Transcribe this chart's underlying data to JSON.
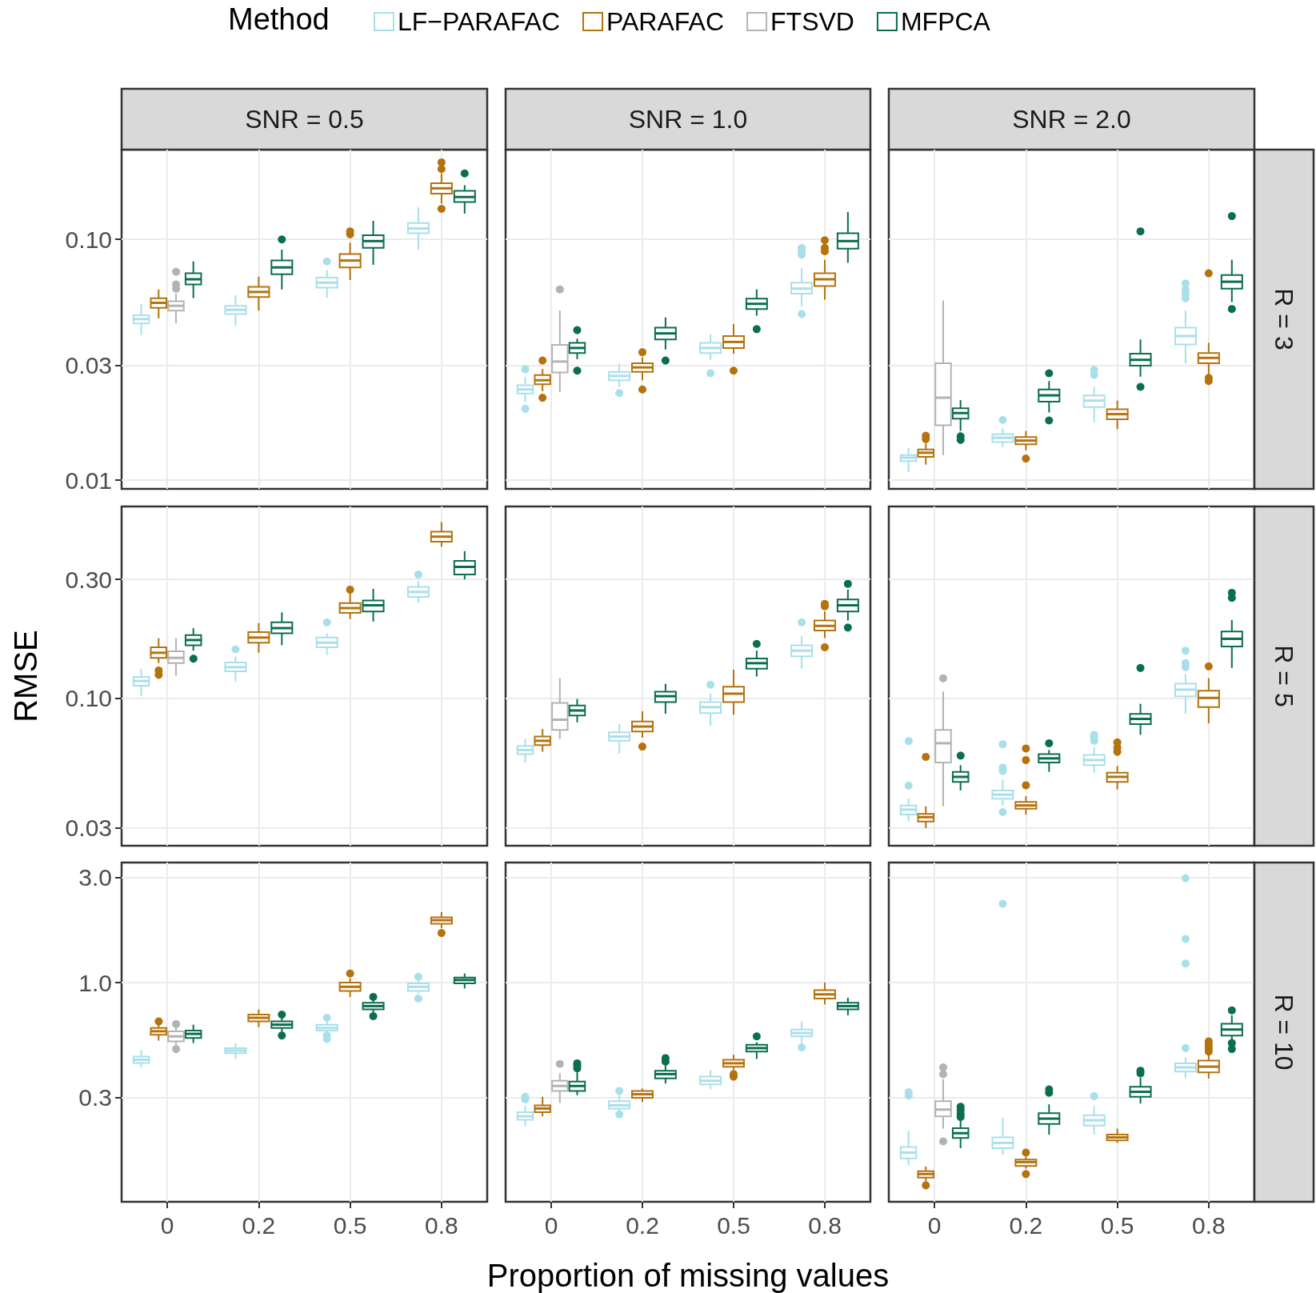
{
  "chart_data": [
    {
      "type": "box",
      "title": "SNR = 0.5",
      "legend": "top",
      "legend_title": "Method",
      "categories": [
        "0",
        "0.2",
        "0.5",
        "0.8"
      ],
      "log": true,
      "grid": true,
      "tick_labels": "y",
      "ylim": [
        0.0092,
        0.236
      ],
      "yticks": [
        0.01,
        0.03,
        {
          "value": 0.1,
          "label": "0.10"
        }
      ],
      "series": [
        {
          "name": "LF−PARAFAC",
          "color": "#a9dfeb",
          "boxes": [
            {
              "low": 0.04,
              "q1": 0.0448,
              "median": 0.0467,
              "q3": 0.0484,
              "high": 0.054
            },
            {
              "low": 0.0437,
              "q1": 0.049,
              "median": 0.051,
              "q3": 0.053,
              "high": 0.0586
            },
            {
              "low": 0.0571,
              "q1": 0.063,
              "median": 0.0661,
              "q3": 0.0694,
              "high": 0.0747,
              "outliers": [
                0.081
              ]
            },
            {
              "low": 0.0907,
              "q1": 0.106,
              "median": 0.111,
              "q3": 0.117,
              "high": 0.136
            }
          ]
        },
        {
          "name": "PARAFAC",
          "color": "#b5720d",
          "boxes": [
            {
              "low": 0.047,
              "q1": 0.052,
              "median": 0.0545,
              "q3": 0.057,
              "high": 0.062
            },
            {
              "low": 0.0506,
              "q1": 0.0576,
              "median": 0.0605,
              "q3": 0.0635,
              "high": 0.07
            },
            {
              "low": 0.0678,
              "q1": 0.0765,
              "median": 0.0817,
              "q3": 0.087,
              "high": 0.0968,
              "outliers": [
                0.105,
                0.108
              ]
            },
            {
              "low": 0.141,
              "q1": 0.155,
              "median": 0.163,
              "q3": 0.171,
              "high": 0.188,
              "outliers": [
                0.134,
                0.196,
                0.209
              ]
            }
          ]
        },
        {
          "name": "FTSVD",
          "color": "#b3b3b3",
          "boxes": [
            {
              "low": 0.0448,
              "q1": 0.0506,
              "median": 0.053,
              "q3": 0.0554,
              "high": 0.0595,
              "outliers": [
                0.063,
                0.0656,
                0.074
              ]
            },
            null,
            null,
            null
          ]
        },
        {
          "name": "MFPCA",
          "color": "#0a6e4f",
          "boxes": [
            {
              "low": 0.057,
              "q1": 0.065,
              "median": 0.0683,
              "q3": 0.0723,
              "high": 0.081
            },
            {
              "low": 0.062,
              "q1": 0.0717,
              "median": 0.0765,
              "q3": 0.0817,
              "high": 0.0907,
              "outliers": [
                0.1
              ]
            },
            {
              "low": 0.0784,
              "q1": 0.0922,
              "median": 0.0984,
              "q3": 0.104,
              "high": 0.1195
            },
            {
              "low": 0.128,
              "q1": 0.143,
              "median": 0.15,
              "q3": 0.159,
              "high": 0.168,
              "outliers": [
                0.188
              ]
            }
          ]
        }
      ]
    },
    {
      "type": "box",
      "title": "SNR = 1.0",
      "categories": [
        "0",
        "0.2",
        "0.5",
        "0.8"
      ],
      "log": true,
      "grid": true,
      "tick_labels": false,
      "ylim": [
        0.0092,
        0.236
      ],
      "yticks": [
        0.01,
        0.03,
        0.1
      ],
      "series": [
        {
          "color": "#a9dfeb",
          "boxes": [
            {
              "low": 0.0211,
              "q1": 0.0229,
              "median": 0.0238,
              "q3": 0.0248,
              "high": 0.0269,
              "outliers": [
                0.0198,
                0.0289
              ]
            },
            {
              "low": 0.0244,
              "q1": 0.026,
              "median": 0.0271,
              "q3": 0.0282,
              "high": 0.0304,
              "outliers": [
                0.023
              ]
            },
            {
              "low": 0.0316,
              "q1": 0.0337,
              "median": 0.0354,
              "q3": 0.0372,
              "high": 0.0404,
              "outliers": [
                0.0278
              ]
            },
            {
              "low": 0.0527,
              "q1": 0.0595,
              "median": 0.0625,
              "q3": 0.0661,
              "high": 0.0759,
              "outliers": [
                0.049,
                0.0864,
                0.0893,
                0.0922
              ]
            }
          ]
        },
        {
          "color": "#b5720d",
          "boxes": [
            {
              "low": 0.0234,
              "q1": 0.025,
              "median": 0.026,
              "q3": 0.0273,
              "high": 0.029,
              "outliers": [
                0.022,
                0.0314
              ]
            },
            {
              "low": 0.026,
              "q1": 0.0282,
              "median": 0.0294,
              "q3": 0.0306,
              "high": 0.0324,
              "outliers": [
                0.0238,
                0.034
              ]
            },
            {
              "low": 0.0335,
              "q1": 0.0354,
              "median": 0.0375,
              "q3": 0.0397,
              "high": 0.0445,
              "outliers": [
                0.0285
              ]
            },
            {
              "low": 0.0562,
              "q1": 0.064,
              "median": 0.0683,
              "q3": 0.0723,
              "high": 0.0823,
              "outliers": [
                0.0893,
                0.0922,
                0.0992
              ]
            }
          ]
        },
        {
          "color": "#b3b3b3",
          "boxes": [
            {
              "low": 0.0232,
              "q1": 0.028,
              "median": 0.0311,
              "q3": 0.0365,
              "high": 0.0506,
              "outliers": [
                0.062
              ]
            },
            null,
            null,
            null
          ]
        },
        {
          "color": "#0a6e4f",
          "boxes": [
            {
              "low": 0.0318,
              "q1": 0.0337,
              "median": 0.0354,
              "q3": 0.0372,
              "high": 0.0387,
              "outliers": [
                0.0285,
                0.042
              ]
            },
            {
              "low": 0.0349,
              "q1": 0.0384,
              "median": 0.0407,
              "q3": 0.043,
              "high": 0.0474,
              "outliers": [
                0.0314
              ]
            },
            {
              "low": 0.0482,
              "q1": 0.0514,
              "median": 0.054,
              "q3": 0.0567,
              "high": 0.062,
              "outliers": [
                0.0424
              ]
            },
            {
              "low": 0.08,
              "q1": 0.0915,
              "median": 0.0984,
              "q3": 0.106,
              "high": 0.13
            }
          ]
        }
      ]
    },
    {
      "type": "box",
      "title": "SNR = 2.0",
      "annotations": [
        "R = 3"
      ],
      "categories": [
        "0",
        "0.2",
        "0.5",
        "0.8"
      ],
      "log": true,
      "grid": true,
      "tick_labels": false,
      "ylim": [
        0.0092,
        0.236
      ],
      "yticks": [
        0.01,
        0.03,
        0.1
      ],
      "series": [
        {
          "color": "#a9dfeb",
          "boxes": [
            {
              "low": 0.0108,
              "q1": 0.012,
              "median": 0.0124,
              "q3": 0.0127,
              "high": 0.0136
            },
            {
              "low": 0.0137,
              "q1": 0.0144,
              "median": 0.015,
              "q3": 0.0155,
              "high": 0.0164,
              "outliers": [
                0.0178
              ]
            },
            {
              "low": 0.0174,
              "q1": 0.0201,
              "median": 0.0214,
              "q3": 0.0225,
              "high": 0.0244,
              "outliers": [
                0.0274,
                0.0287
              ]
            },
            {
              "low": 0.0306,
              "q1": 0.0366,
              "median": 0.0397,
              "q3": 0.043,
              "high": 0.0506,
              "outliers": [
                0.057,
                0.0595,
                0.062,
                0.0656
              ]
            }
          ]
        },
        {
          "color": "#b5720d",
          "boxes": [
            {
              "low": 0.0116,
              "q1": 0.0125,
              "median": 0.013,
              "q3": 0.0134,
              "high": 0.0142,
              "outliers": [
                0.0148,
                0.0153
              ]
            },
            {
              "low": 0.0133,
              "q1": 0.0141,
              "median": 0.0146,
              "q3": 0.0151,
              "high": 0.016,
              "outliers": [
                0.0123
              ]
            },
            {
              "low": 0.0163,
              "q1": 0.0179,
              "median": 0.0188,
              "q3": 0.0197,
              "high": 0.0214
            },
            {
              "low": 0.0275,
              "q1": 0.0306,
              "median": 0.0322,
              "q3": 0.0337,
              "high": 0.0372,
              "outliers": [
                0.0258,
                0.0266,
                0.0723
              ]
            }
          ]
        },
        {
          "color": "#b3b3b3",
          "boxes": [
            {
              "low": 0.0127,
              "q1": 0.0169,
              "median": 0.022,
              "q3": 0.0306,
              "high": 0.0558
            },
            null,
            null,
            null
          ]
        },
        {
          "color": "#0a6e4f",
          "boxes": [
            {
              "low": 0.016,
              "q1": 0.018,
              "median": 0.019,
              "q3": 0.0199,
              "high": 0.0215,
              "outliers": [
                0.0148,
                0.0153
              ]
            },
            {
              "low": 0.0191,
              "q1": 0.0212,
              "median": 0.0225,
              "q3": 0.0238,
              "high": 0.0258,
              "outliers": [
                0.0177,
                0.0278
              ]
            },
            {
              "low": 0.0269,
              "q1": 0.0299,
              "median": 0.0316,
              "q3": 0.0335,
              "high": 0.0384,
              "outliers": [
                0.0244,
                0.108
              ]
            },
            {
              "low": 0.0549,
              "q1": 0.0625,
              "median": 0.0667,
              "q3": 0.0711,
              "high": 0.0823,
              "outliers": [
                0.0514,
                0.125
              ]
            }
          ]
        }
      ]
    },
    {
      "type": "box",
      "ylabel": "RMSE",
      "categories": [
        "0",
        "0.2",
        "0.5",
        "0.8"
      ],
      "log": true,
      "grid": true,
      "tick_labels": "y",
      "ylim": [
        0.0254,
        0.59
      ],
      "yticks": [
        0.03,
        {
          "value": 0.1,
          "label": "0.10"
        },
        {
          "value": 0.3,
          "label": "0.30"
        }
      ],
      "series": [
        {
          "color": "#a9dfeb",
          "boxes": [
            {
              "low": 0.1016,
              "q1": 0.112,
              "median": 0.117,
              "q3": 0.1215,
              "high": 0.131
            },
            {
              "low": 0.116,
              "q1": 0.128,
              "median": 0.133,
              "q3": 0.139,
              "high": 0.147,
              "outliers": [
                0.157
              ]
            },
            {
              "low": 0.149,
              "q1": 0.16,
              "median": 0.167,
              "q3": 0.175,
              "high": 0.182,
              "outliers": [
                0.2015
              ]
            },
            {
              "low": 0.241,
              "q1": 0.255,
              "median": 0.267,
              "q3": 0.28,
              "high": 0.295,
              "outliers": [
                0.314
              ]
            }
          ]
        },
        {
          "color": "#b5720d",
          "boxes": [
            {
              "low": 0.138,
              "q1": 0.145,
              "median": 0.152,
              "q3": 0.16,
              "high": 0.174,
              "outliers": [
                0.125,
                0.13
              ]
            },
            {
              "low": 0.152,
              "q1": 0.167,
              "median": 0.175,
              "q3": 0.184,
              "high": 0.2
            },
            {
              "low": 0.208,
              "q1": 0.22,
              "median": 0.23,
              "q3": 0.241,
              "high": 0.263,
              "outliers": [
                0.273
              ]
            },
            {
              "low": 0.406,
              "q1": 0.426,
              "median": 0.446,
              "q3": 0.467,
              "high": 0.511
            }
          ]
        },
        {
          "color": "#b3b3b3",
          "boxes": [
            {
              "low": 0.123,
              "q1": 0.138,
              "median": 0.145,
              "q3": 0.154,
              "high": 0.174
            },
            null,
            null,
            null
          ]
        },
        {
          "color": "#0a6e4f",
          "boxes": [
            {
              "low": 0.155,
              "q1": 0.163,
              "median": 0.171,
              "q3": 0.179,
              "high": 0.191,
              "outliers": [
                0.145
              ]
            },
            {
              "low": 0.163,
              "q1": 0.182,
              "median": 0.191,
              "q3": 0.2015,
              "high": 0.221
            },
            {
              "low": 0.203,
              "q1": 0.223,
              "median": 0.236,
              "q3": 0.247,
              "high": 0.275
            },
            {
              "low": 0.3,
              "q1": 0.314,
              "median": 0.337,
              "q3": 0.356,
              "high": 0.39
            }
          ]
        }
      ]
    },
    {
      "type": "box",
      "categories": [
        "0",
        "0.2",
        "0.5",
        "0.8"
      ],
      "log": true,
      "grid": true,
      "tick_labels": false,
      "ylim": [
        0.0254,
        0.59
      ],
      "yticks": [
        0.03,
        0.1,
        0.3
      ],
      "series": [
        {
          "color": "#a9dfeb",
          "boxes": [
            {
              "low": 0.0549,
              "q1": 0.0594,
              "median": 0.0617,
              "q3": 0.0641,
              "high": 0.0683
            },
            {
              "low": 0.0598,
              "q1": 0.0672,
              "median": 0.0699,
              "q3": 0.0727,
              "high": 0.0785
            },
            {
              "low": 0.0773,
              "q1": 0.0869,
              "median": 0.0918,
              "q3": 0.0962,
              "high": 0.104,
              "outliers": [
                0.113
              ]
            },
            {
              "low": 0.131,
              "q1": 0.147,
              "median": 0.155,
              "q3": 0.163,
              "high": 0.177,
              "outliers": [
                0.2015
              ]
            }
          ]
        },
        {
          "color": "#b5720d",
          "boxes": [
            {
              "low": 0.0607,
              "q1": 0.0646,
              "median": 0.0672,
              "q3": 0.0699,
              "high": 0.075
            },
            {
              "low": 0.0693,
              "q1": 0.0732,
              "median": 0.0767,
              "q3": 0.0804,
              "high": 0.0883,
              "outliers": [
                0.0637
              ]
            },
            {
              "low": 0.0856,
              "q1": 0.0962,
              "median": 0.104,
              "q3": 0.111,
              "high": 0.13
            },
            {
              "low": 0.174,
              "q1": 0.187,
              "median": 0.195,
              "q3": 0.205,
              "high": 0.223,
              "outliers": [
                0.16,
                0.234,
                0.239
              ]
            }
          ]
        },
        {
          "color": "#b3b3b3",
          "boxes": [
            {
              "low": 0.0683,
              "q1": 0.0744,
              "median": 0.0817,
              "q3": 0.0954,
              "high": 0.12
            },
            null,
            null,
            null
          ]
        },
        {
          "color": "#0a6e4f",
          "boxes": [
            {
              "low": 0.0798,
              "q1": 0.0849,
              "median": 0.089,
              "q3": 0.0932,
              "high": 0.099
            },
            {
              "low": 0.0863,
              "q1": 0.0962,
              "median": 0.1016,
              "q3": 0.106,
              "high": 0.114
            },
            {
              "low": 0.122,
              "q1": 0.131,
              "median": 0.138,
              "q3": 0.144,
              "high": 0.155,
              "outliers": [
                0.165
              ]
            },
            {
              "low": 0.205,
              "q1": 0.223,
              "median": 0.236,
              "q3": 0.249,
              "high": 0.273,
              "outliers": [
                0.192,
                0.288
              ]
            }
          ]
        }
      ]
    },
    {
      "type": "box",
      "annotations": [
        "R = 5"
      ],
      "categories": [
        "0",
        "0.2",
        "0.5",
        "0.8"
      ],
      "log": true,
      "grid": true,
      "tick_labels": false,
      "ylim": [
        0.0254,
        0.59
      ],
      "yticks": [
        0.03,
        0.1,
        0.3
      ],
      "series": [
        {
          "color": "#a9dfeb",
          "boxes": [
            {
              "low": 0.0318,
              "q1": 0.0339,
              "median": 0.0355,
              "q3": 0.0369,
              "high": 0.0393,
              "outliers": [
                0.0448,
                0.0678
              ]
            },
            {
              "low": 0.0369,
              "q1": 0.0393,
              "median": 0.0408,
              "q3": 0.0424,
              "high": 0.047,
              "outliers": [
                0.0347,
                0.0508,
                0.0524,
                0.0651
              ]
            },
            {
              "low": 0.05,
              "q1": 0.0536,
              "median": 0.0562,
              "q3": 0.0589,
              "high": 0.0631,
              "outliers": [
                0.0672,
                0.0693,
                0.071
              ]
            },
            {
              "low": 0.0863,
              "q1": 0.1016,
              "median": 0.108,
              "q3": 0.114,
              "high": 0.125,
              "outliers": [
                0.133,
                0.138,
                0.155
              ]
            }
          ]
        },
        {
          "color": "#b5720d",
          "boxes": [
            {
              "low": 0.0299,
              "q1": 0.0318,
              "median": 0.0331,
              "q3": 0.0341,
              "high": 0.0366,
              "outliers": [
                0.0579
              ]
            },
            {
              "low": 0.0339,
              "q1": 0.0358,
              "median": 0.0369,
              "q3": 0.0381,
              "high": 0.0402,
              "outliers": [
                0.0445,
                0.0562,
                0.0626
              ]
            },
            {
              "low": 0.0428,
              "q1": 0.0459,
              "median": 0.0481,
              "q3": 0.05,
              "high": 0.0532,
              "outliers": [
                0.0607,
                0.0631,
                0.0662
              ]
            },
            {
              "low": 0.0791,
              "q1": 0.0918,
              "median": 0.1,
              "q3": 0.107,
              "high": 0.12,
              "outliers": [
                0.134
              ]
            }
          ]
        },
        {
          "color": "#b3b3b3",
          "boxes": [
            {
              "low": 0.0366,
              "q1": 0.0549,
              "median": 0.0657,
              "q3": 0.0744,
              "high": 0.106,
              "outliers": [
                0.12
              ]
            },
            null,
            null,
            null
          ]
        },
        {
          "color": "#0a6e4f",
          "boxes": [
            {
              "low": 0.0424,
              "q1": 0.0459,
              "median": 0.0481,
              "q3": 0.0504,
              "high": 0.0536,
              "outliers": [
                0.0589
              ]
            },
            {
              "low": 0.0504,
              "q1": 0.0549,
              "median": 0.0571,
              "q3": 0.0594,
              "high": 0.0617,
              "outliers": [
                0.0657
              ]
            },
            {
              "low": 0.071,
              "q1": 0.0785,
              "median": 0.0823,
              "q3": 0.0863,
              "high": 0.0947,
              "outliers": [
                0.132
              ]
            },
            {
              "low": 0.132,
              "q1": 0.161,
              "median": 0.173,
              "q3": 0.185,
              "high": 0.206,
              "outliers": [
                0.253,
                0.265
              ]
            }
          ]
        }
      ]
    },
    {
      "type": "box",
      "categories": [
        "0",
        "0.2",
        "0.5",
        "0.8"
      ],
      "log": true,
      "grid": true,
      "ylim": [
        0.101,
        3.51
      ],
      "yticks": [
        0.3,
        {
          "value": 1,
          "label": "1.0"
        },
        {
          "value": 3,
          "label": "3.0"
        }
      ],
      "series": [
        {
          "color": "#a9dfeb",
          "boxes": [
            {
              "low": 0.412,
              "q1": 0.431,
              "median": 0.446,
              "q3": 0.461,
              "high": 0.495
            },
            {
              "low": 0.45,
              "q1": 0.478,
              "median": 0.491,
              "q3": 0.504,
              "high": 0.531
            },
            {
              "low": 0.59,
              "q1": 0.606,
              "median": 0.622,
              "q3": 0.644,
              "high": 0.667,
              "outliers": [
                0.555,
                0.575,
                0.692
              ]
            },
            {
              "low": 0.892,
              "q1": 0.916,
              "median": 0.957,
              "q3": 0.991,
              "high": 1.018,
              "outliers": [
                0.846,
                1.063
              ]
            }
          ]
        },
        {
          "color": "#b5720d",
          "boxes": [
            {
              "low": 0.545,
              "q1": 0.58,
              "median": 0.601,
              "q3": 0.622,
              "high": 0.656,
              "outliers": [
                0.673
              ]
            },
            {
              "low": 0.628,
              "q1": 0.667,
              "median": 0.692,
              "q3": 0.716,
              "high": 0.755
            },
            {
              "low": 0.861,
              "q1": 0.916,
              "median": 0.957,
              "q3": 1.0,
              "high": 1.045,
              "outliers": [
                1.1
              ]
            },
            {
              "low": 1.77,
              "q1": 1.85,
              "median": 1.92,
              "q3": 1.98,
              "high": 2.09,
              "outliers": [
                1.68
              ]
            }
          ]
        },
        {
          "color": "#b3b3b3",
          "boxes": [
            {
              "low": 0.52,
              "q1": 0.541,
              "median": 0.57,
              "q3": 0.601,
              "high": 0.625,
              "outliers": [
                0.504,
                0.655
              ]
            },
            null,
            null,
            null
          ]
        },
        {
          "color": "#0a6e4f",
          "boxes": [
            {
              "low": 0.531,
              "q1": 0.56,
              "median": 0.585,
              "q3": 0.606,
              "high": 0.644
            },
            {
              "low": 0.595,
              "q1": 0.622,
              "median": 0.644,
              "q3": 0.667,
              "high": 0.698,
              "outliers": [
                0.575,
                0.716
              ]
            },
            {
              "low": 0.729,
              "q1": 0.755,
              "median": 0.782,
              "q3": 0.81,
              "high": 0.839,
              "outliers": [
                0.704,
                0.861
              ]
            },
            {
              "low": 0.94,
              "q1": 0.991,
              "median": 1.027,
              "q3": 1.054,
              "high": 1.1
            }
          ]
        }
      ]
    },
    {
      "type": "box",
      "xlabel": "Proportion of missing values",
      "categories": [
        "0",
        "0.2",
        "0.5",
        "0.8"
      ],
      "log": true,
      "grid": true,
      "tick_labels": "x",
      "ylim": [
        0.101,
        3.51
      ],
      "yticks": [
        0.3,
        1,
        3
      ],
      "series": [
        {
          "color": "#a9dfeb",
          "boxes": [
            {
              "low": 0.223,
              "q1": 0.238,
              "median": 0.247,
              "q3": 0.258,
              "high": 0.277,
              "outliers": [
                0.295,
                0.303
              ]
            },
            {
              "low": 0.258,
              "q1": 0.268,
              "median": 0.277,
              "q3": 0.289,
              "high": 0.308,
              "outliers": [
                0.252,
                0.322
              ]
            },
            {
              "low": 0.328,
              "q1": 0.345,
              "median": 0.358,
              "q3": 0.374,
              "high": 0.401
            },
            {
              "low": 0.531,
              "q1": 0.57,
              "median": 0.59,
              "q3": 0.612,
              "high": 0.667,
              "outliers": [
                0.508
              ]
            }
          ]
        },
        {
          "color": "#b5720d",
          "boxes": [
            {
              "low": 0.247,
              "q1": 0.258,
              "median": 0.268,
              "q3": 0.277,
              "high": 0.303
            },
            {
              "low": 0.287,
              "q1": 0.3,
              "median": 0.311,
              "q3": 0.322,
              "high": 0.33
            },
            {
              "low": 0.4,
              "q1": 0.415,
              "median": 0.43,
              "q3": 0.446,
              "high": 0.47,
              "outliers": [
                0.374,
                0.384
              ]
            },
            {
              "low": 0.796,
              "q1": 0.846,
              "median": 0.884,
              "q3": 0.924,
              "high": 1.0
            }
          ]
        },
        {
          "color": "#b3b3b3",
          "boxes": [
            {
              "low": 0.284,
              "q1": 0.322,
              "median": 0.339,
              "q3": 0.358,
              "high": 0.387,
              "outliers": [
                0.427
              ]
            },
            null,
            null,
            null
          ]
        },
        {
          "color": "#0a6e4f",
          "boxes": [
            {
              "low": 0.308,
              "q1": 0.322,
              "median": 0.339,
              "q3": 0.355,
              "high": 0.391,
              "outliers": [
                0.408,
                0.419,
                0.43
              ]
            },
            {
              "low": 0.348,
              "q1": 0.367,
              "median": 0.384,
              "q3": 0.398,
              "high": 0.423,
              "outliers": [
                0.438,
                0.454
              ]
            },
            {
              "low": 0.45,
              "q1": 0.486,
              "median": 0.504,
              "q3": 0.522,
              "high": 0.536,
              "outliers": [
                0.57
              ]
            },
            {
              "low": 0.71,
              "q1": 0.755,
              "median": 0.782,
              "q3": 0.81,
              "high": 0.854
            }
          ]
        }
      ]
    },
    {
      "type": "box",
      "annotations": [
        "R = 10"
      ],
      "categories": [
        "0",
        "0.2",
        "0.5",
        "0.8"
      ],
      "log": true,
      "grid": true,
      "tick_labels": "x",
      "ylim": [
        0.101,
        3.51
      ],
      "yticks": [
        0.3,
        1,
        3
      ],
      "series": [
        {
          "color": "#a9dfeb",
          "boxes": [
            {
              "low": 0.148,
              "q1": 0.159,
              "median": 0.169,
              "q3": 0.179,
              "high": 0.213,
              "outliers": [
                0.311,
                0.322
              ]
            },
            {
              "low": 0.165,
              "q1": 0.177,
              "median": 0.187,
              "q3": 0.198,
              "high": 0.243,
              "outliers": [
                2.28
              ]
            },
            {
              "low": 0.204,
              "q1": 0.224,
              "median": 0.237,
              "q3": 0.25,
              "high": 0.275,
              "outliers": [
                0.305
              ]
            },
            {
              "low": 0.367,
              "q1": 0.394,
              "median": 0.412,
              "q3": 0.43,
              "high": 0.458,
              "outliers": [
                0.504,
                1.22,
                1.58,
                2.98
              ]
            }
          ]
        },
        {
          "color": "#b5720d",
          "boxes": [
            {
              "low": 0.125,
              "q1": 0.13,
              "median": 0.135,
              "q3": 0.139,
              "high": 0.146,
              "outliers": [
                0.12
              ]
            },
            {
              "low": 0.143,
              "q1": 0.147,
              "median": 0.153,
              "q3": 0.157,
              "high": 0.162,
              "outliers": [
                0.135,
                0.169
              ]
            },
            {
              "low": 0.187,
              "q1": 0.192,
              "median": 0.198,
              "q3": 0.204,
              "high": 0.217
            },
            {
              "low": 0.367,
              "q1": 0.391,
              "median": 0.415,
              "q3": 0.442,
              "high": 0.47,
              "outliers": [
                0.486,
                0.504,
                0.522,
                0.541
              ]
            }
          ]
        },
        {
          "color": "#b3b3b3",
          "boxes": [
            {
              "low": 0.217,
              "q1": 0.247,
              "median": 0.265,
              "q3": 0.289,
              "high": 0.364,
              "outliers": [
                0.19,
                0.384,
                0.412
              ]
            },
            null,
            null,
            null
          ]
        },
        {
          "color": "#0a6e4f",
          "boxes": [
            {
              "low": 0.177,
              "q1": 0.197,
              "median": 0.207,
              "q3": 0.218,
              "high": 0.238,
              "outliers": [
                0.247,
                0.255,
                0.265,
                0.275
              ]
            },
            {
              "low": 0.204,
              "q1": 0.228,
              "median": 0.241,
              "q3": 0.255,
              "high": 0.28,
              "outliers": [
                0.316,
                0.327
              ]
            },
            {
              "low": 0.282,
              "q1": 0.303,
              "median": 0.319,
              "q3": 0.336,
              "high": 0.37,
              "outliers": [
                0.387,
                0.398
              ]
            },
            {
              "low": 0.545,
              "q1": 0.575,
              "median": 0.612,
              "q3": 0.65,
              "high": 0.71,
              "outliers": [
                0.499,
                0.531,
                0.748
              ]
            }
          ]
        }
      ]
    }
  ]
}
